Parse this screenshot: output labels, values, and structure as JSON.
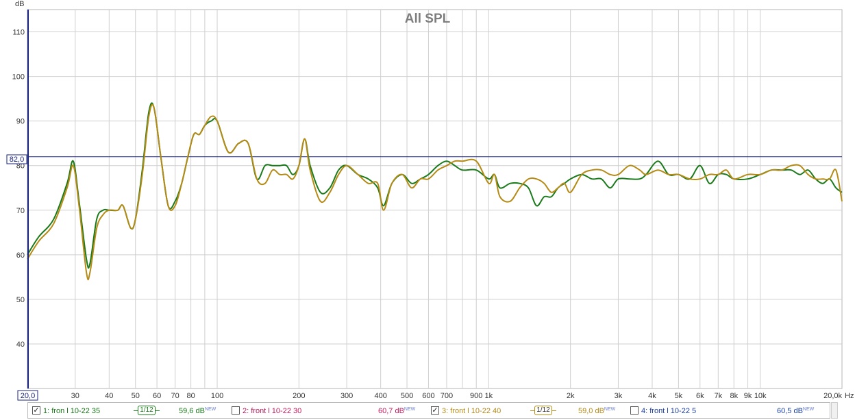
{
  "chart_data": {
    "type": "line",
    "title": "All SPL",
    "ylabel": "dB",
    "xunit": "Hz",
    "xscale": "log",
    "xlim": [
      20,
      20000
    ],
    "ylim": [
      30,
      115
    ],
    "grid": true,
    "reference_line": {
      "value": 82.0,
      "label": "82,0"
    },
    "left_axis_start_label": "20,0",
    "y_ticks": [
      "40",
      "50",
      "60",
      "70",
      "80",
      "90",
      "100",
      "110"
    ],
    "x_ticks": [
      {
        "v": 30,
        "label": "30"
      },
      {
        "v": 40,
        "label": "40"
      },
      {
        "v": 50,
        "label": "50"
      },
      {
        "v": 60,
        "label": "60"
      },
      {
        "v": 70,
        "label": "70"
      },
      {
        "v": 80,
        "label": "80"
      },
      {
        "v": 100,
        "label": "100"
      },
      {
        "v": 200,
        "label": "200"
      },
      {
        "v": 300,
        "label": "300"
      },
      {
        "v": 400,
        "label": "400"
      },
      {
        "v": 500,
        "label": "500"
      },
      {
        "v": 600,
        "label": "600"
      },
      {
        "v": 700,
        "label": "700"
      },
      {
        "v": 900,
        "label": "900"
      },
      {
        "v": 1000,
        "label": "1k"
      },
      {
        "v": 2000,
        "label": "2k"
      },
      {
        "v": 3000,
        "label": "3k"
      },
      {
        "v": 4000,
        "label": "4k"
      },
      {
        "v": 5000,
        "label": "5k"
      },
      {
        "v": 6000,
        "label": "6k"
      },
      {
        "v": 7000,
        "label": "7k"
      },
      {
        "v": 8000,
        "label": "8k"
      },
      {
        "v": 9000,
        "label": "9k"
      },
      {
        "v": 10000,
        "label": "10k"
      },
      {
        "v": 20000,
        "label": "20,0k"
      }
    ],
    "series": [
      {
        "name": "1: fron l 10-22 35",
        "color": "#1a7a1a",
        "x": [
          20,
          22,
          25,
          28,
          29.5,
          31,
          33,
          34,
          36,
          38,
          40,
          43,
          45,
          48,
          50,
          53,
          56,
          58.5,
          62,
          66,
          70,
          74,
          78,
          82,
          86,
          90,
          95,
          100,
          110,
          120,
          130,
          140,
          150,
          160,
          170,
          180,
          190,
          200,
          210,
          220,
          240,
          260,
          280,
          300,
          330,
          360,
          390,
          410,
          440,
          480,
          520,
          560,
          600,
          650,
          700,
          750,
          800,
          900,
          1000,
          1050,
          1100,
          1200,
          1300,
          1400,
          1500,
          1600,
          1700,
          1800,
          1900,
          2000,
          2200,
          2400,
          2600,
          2800,
          3000,
          3300,
          3600,
          3800,
          4200,
          4600,
          5000,
          5500,
          6000,
          6500,
          7000,
          7500,
          8000,
          9000,
          10000,
          11000,
          12000,
          13000,
          14000,
          15000,
          16000,
          17000,
          18000,
          19000,
          20000
        ],
        "y": [
          60,
          64,
          68,
          76,
          81,
          72,
          59,
          58,
          68,
          70,
          70,
          70,
          71,
          66,
          68,
          79,
          92,
          93,
          82,
          71,
          72,
          76,
          82,
          87,
          87,
          89,
          90,
          90,
          83,
          85,
          85,
          77,
          80,
          80,
          80,
          80,
          78,
          80,
          86,
          80,
          74,
          75,
          79,
          80,
          78,
          77,
          75,
          71,
          76,
          78,
          76,
          77,
          78,
          80,
          81,
          80,
          79,
          79,
          77,
          78,
          75,
          76,
          76,
          75,
          71,
          73,
          73,
          75,
          76,
          77,
          78,
          77,
          77,
          75,
          77,
          77,
          77,
          78,
          81,
          78,
          78,
          77,
          80,
          76,
          78,
          78,
          77,
          77,
          78,
          79,
          79,
          79,
          78,
          79,
          77,
          76,
          77,
          75,
          74
        ]
      },
      {
        "name": "3: front l 10-22 40",
        "color": "#b58a15",
        "x": [
          20,
          22,
          25,
          28,
          29.5,
          31,
          33,
          34,
          36,
          38,
          40,
          43,
          45,
          48,
          50,
          53,
          56,
          58.5,
          62,
          66,
          70,
          74,
          78,
          82,
          86,
          90,
          95,
          100,
          110,
          120,
          130,
          140,
          150,
          160,
          170,
          180,
          190,
          200,
          210,
          220,
          240,
          260,
          280,
          300,
          330,
          360,
          390,
          410,
          440,
          480,
          520,
          560,
          600,
          650,
          700,
          750,
          800,
          900,
          1000,
          1050,
          1100,
          1200,
          1300,
          1400,
          1500,
          1600,
          1700,
          1800,
          1900,
          2000,
          2200,
          2400,
          2600,
          2800,
          3000,
          3300,
          3600,
          3800,
          4200,
          4600,
          5000,
          5500,
          6000,
          6500,
          7000,
          7500,
          8000,
          9000,
          10000,
          11000,
          12000,
          13000,
          14000,
          15000,
          16000,
          17000,
          18000,
          19000,
          20000
        ],
        "y": [
          59,
          63,
          67,
          75,
          80,
          71,
          56,
          56,
          66,
          69,
          70,
          70,
          71,
          66,
          68,
          78,
          91,
          93,
          82,
          71,
          71,
          76,
          82,
          87,
          87,
          89,
          91,
          90,
          83,
          85,
          85,
          77,
          76,
          79,
          78,
          78,
          77,
          80,
          86,
          79,
          72,
          74,
          78,
          80,
          78,
          76,
          76,
          70,
          76,
          78,
          75,
          77,
          77,
          79,
          80,
          81,
          81,
          81,
          76,
          78,
          73,
          72,
          75,
          77,
          77,
          76,
          74,
          75,
          76,
          74,
          78,
          79,
          79,
          78,
          78,
          80,
          79,
          78,
          79,
          78,
          78,
          77,
          77,
          78,
          78,
          79,
          77,
          78,
          78,
          79,
          79,
          80,
          80,
          78,
          77,
          77,
          77,
          79,
          72
        ]
      }
    ]
  },
  "legend": {
    "items": [
      {
        "checked": true,
        "label": "1: fron l 10-22 35",
        "smoothing": "1/12",
        "level": "59,6 dB",
        "tag": "NEW",
        "color": "#1a7a1a",
        "check_mark": "✓"
      },
      {
        "checked": false,
        "label": "2: front l 10-22 30",
        "level": "60,7 dB",
        "tag": "NEW",
        "color": "#c2185b",
        "check_mark": ""
      },
      {
        "checked": true,
        "label": "3: front l 10-22 40",
        "smoothing": "1/12",
        "level": "59,0 dB",
        "tag": "NEW",
        "color": "#b58a15",
        "check_mark": "✓"
      },
      {
        "checked": false,
        "label": "4: front l 10-22 5",
        "level": "60,5 dB",
        "tag": "NEW",
        "color": "#1a3fa8",
        "check_mark": ""
      }
    ]
  }
}
